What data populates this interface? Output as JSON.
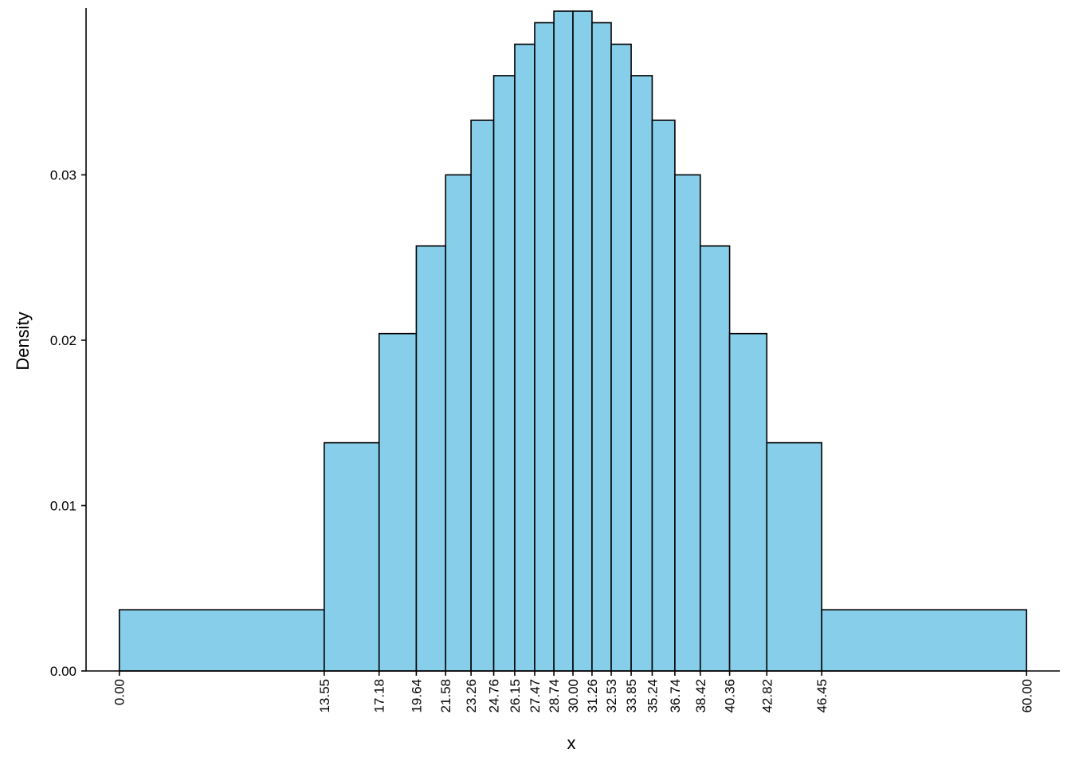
{
  "chart_data": {
    "type": "bar",
    "histogram": true,
    "xlabel": "x",
    "ylabel": "Density",
    "bar_color": "#87CEEB",
    "edge_color": "#000000",
    "breaks": [
      0.0,
      13.55,
      17.18,
      19.64,
      21.58,
      23.26,
      24.76,
      26.15,
      27.47,
      28.74,
      30.0,
      31.26,
      32.53,
      33.85,
      35.24,
      36.74,
      38.42,
      40.36,
      42.82,
      46.45,
      60.0
    ],
    "x_tick_labels": [
      "0.00",
      "13.55",
      "17.18",
      "19.64",
      "21.58",
      "23.26",
      "24.76",
      "26.15",
      "27.47",
      "28.74",
      "30.00",
      "31.26",
      "32.53",
      "33.85",
      "35.24",
      "36.74",
      "38.42",
      "40.36",
      "42.82",
      "46.45",
      "60.00"
    ],
    "densities": [
      0.0037,
      0.0138,
      0.0204,
      0.0257,
      0.03,
      0.0333,
      0.036,
      0.0379,
      0.0392,
      0.0399,
      0.0399,
      0.0392,
      0.0379,
      0.036,
      0.0333,
      0.03,
      0.0257,
      0.0204,
      0.0138,
      0.0037
    ],
    "y_ticks": [
      0.0,
      0.01,
      0.02,
      0.03
    ],
    "y_tick_labels": [
      "0.00",
      "0.01",
      "0.02",
      "0.03"
    ],
    "xlim": [
      -2.2,
      62.2
    ],
    "ylim": [
      0,
      0.0399
    ],
    "grid": false,
    "legend": false
  }
}
